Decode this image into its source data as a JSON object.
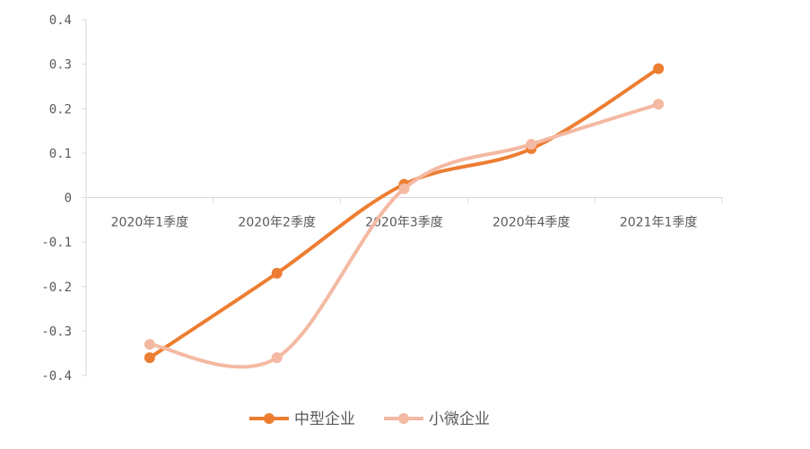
{
  "chart_data": {
    "type": "line",
    "title": "",
    "xlabel": "",
    "ylabel": "",
    "categories": [
      "2020年1季度",
      "2020年2季度",
      "2020年3季度",
      "2020年4季度",
      "2021年1季度"
    ],
    "ylim": [
      -0.4,
      0.4
    ],
    "yticks": [
      "0.4",
      "0.3",
      "0.2",
      "0.1",
      "0",
      "-0.1",
      "-0.2",
      "-0.3",
      "-0.4"
    ],
    "grid": false,
    "smooth": true,
    "legend": "bottom",
    "series": [
      {
        "name": "中型企业",
        "color": "#ED7D31",
        "values": [
          -0.36,
          -0.17,
          0.03,
          0.11,
          0.29
        ]
      },
      {
        "name": "小微企业",
        "color": "#F4B9A2",
        "values": [
          -0.33,
          -0.36,
          0.02,
          0.12,
          0.21
        ]
      }
    ]
  }
}
